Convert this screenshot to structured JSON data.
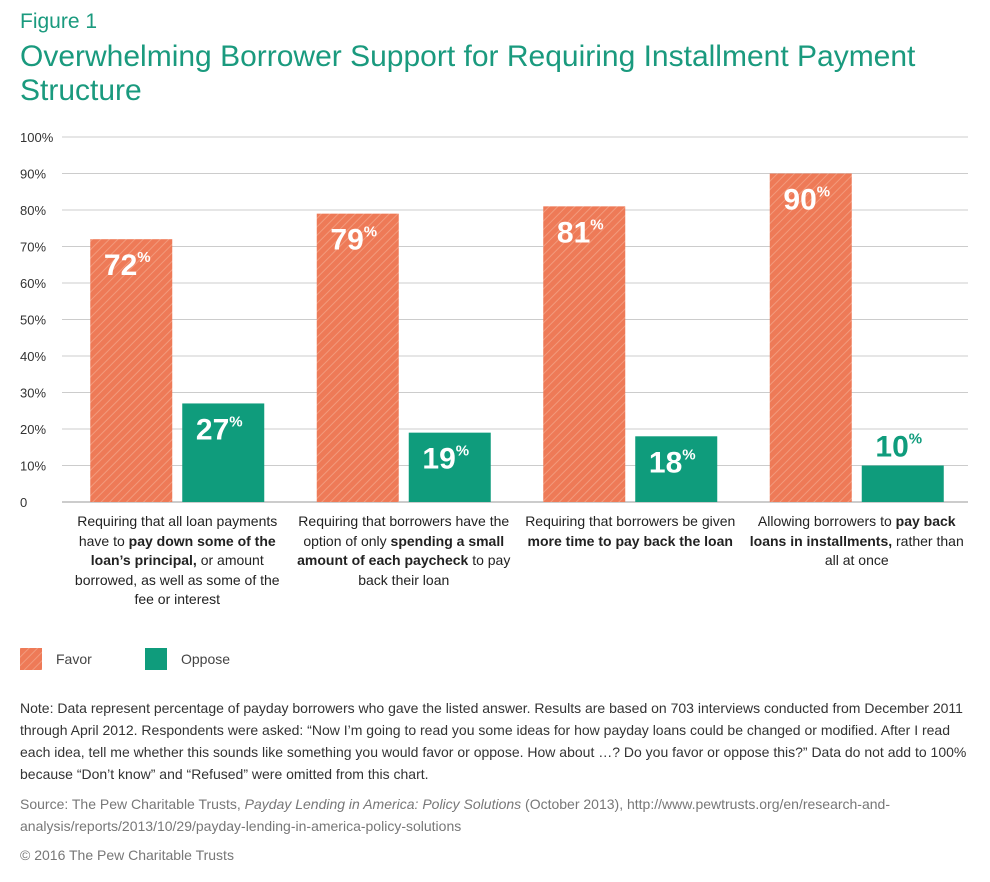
{
  "figure_label": "Figure 1",
  "title": "Overwhelming Borrower Support for Requiring Installment Payment Structure",
  "colors": {
    "favor": "#ee7a57",
    "oppose": "#0f9c7c",
    "grid": "#cccccc",
    "title": "#1a9a7e"
  },
  "chart_data": {
    "type": "bar",
    "categories": [
      "Requiring that all loan payments have to pay down some of the loan's principal, or amount borrowed, as well as some of the fee or interest",
      "Requiring that borrowers have the option of only spending a small amount of each paycheck to pay back their loan",
      "Requiring that borrowers be given more time to pay back the loan",
      "Allowing borrowers to pay back loans in installments, rather than all at once"
    ],
    "series": [
      {
        "name": "Favor",
        "values": [
          72,
          79,
          81,
          90
        ]
      },
      {
        "name": "Oppose",
        "values": [
          27,
          19,
          18,
          10
        ]
      }
    ],
    "data_labels": [
      [
        "72",
        "79",
        "81",
        "90"
      ],
      [
        "27",
        "19",
        "18",
        "10"
      ]
    ],
    "label_suffix": "%",
    "ylim": [
      0,
      100
    ],
    "y_ticks": [
      "0",
      "10%",
      "20%",
      "30%",
      "40%",
      "50%",
      "60%",
      "70%",
      "80%",
      "90%",
      "100%"
    ],
    "grid": true,
    "legend": "bottom-left"
  },
  "categories_rich": [
    [
      {
        "t": "Requiring that all loan payments have to "
      },
      {
        "t": "pay down some of the loan’s principal,",
        "b": true
      },
      {
        "t": " or amount borrowed, as well as some of the fee or interest"
      }
    ],
    [
      {
        "t": "Requiring that borrowers have the option of only "
      },
      {
        "t": "spending a small amount of each paycheck",
        "b": true
      },
      {
        "t": " to pay back their loan"
      }
    ],
    [
      {
        "t": "Requiring that borrowers be given "
      },
      {
        "t": "more time to pay back the loan",
        "b": true
      }
    ],
    [
      {
        "t": "Allowing borrowers to "
      },
      {
        "t": "pay back loans in installments,",
        "b": true
      },
      {
        "t": " rather than all at once"
      }
    ]
  ],
  "legend": {
    "favor": "Favor",
    "oppose": "Oppose"
  },
  "note": "Note: Data represent percentage of payday borrowers who gave the listed answer. Results are based on 703 interviews conducted from December 2011 through April 2012. Respondents were asked: “Now I’m going to read you some ideas for how payday loans could be changed or modified. After I read each idea, tell me whether this sounds like something you would favor or oppose. How about …? Do you favor or oppose this?” Data do not add to 100% because “Don’t know” and “Refused” were omitted from this chart.",
  "source": {
    "prefix": "Source: The Pew Charitable Trusts, ",
    "publication": "Payday Lending in America: Policy Solutions",
    "suffix": " (October 2013), http://www.pewtrusts.org/en/research-and-analysis/reports/2013/10/29/payday-lending-in-america-policy-solutions"
  },
  "copyright": "© 2016 The Pew Charitable Trusts"
}
